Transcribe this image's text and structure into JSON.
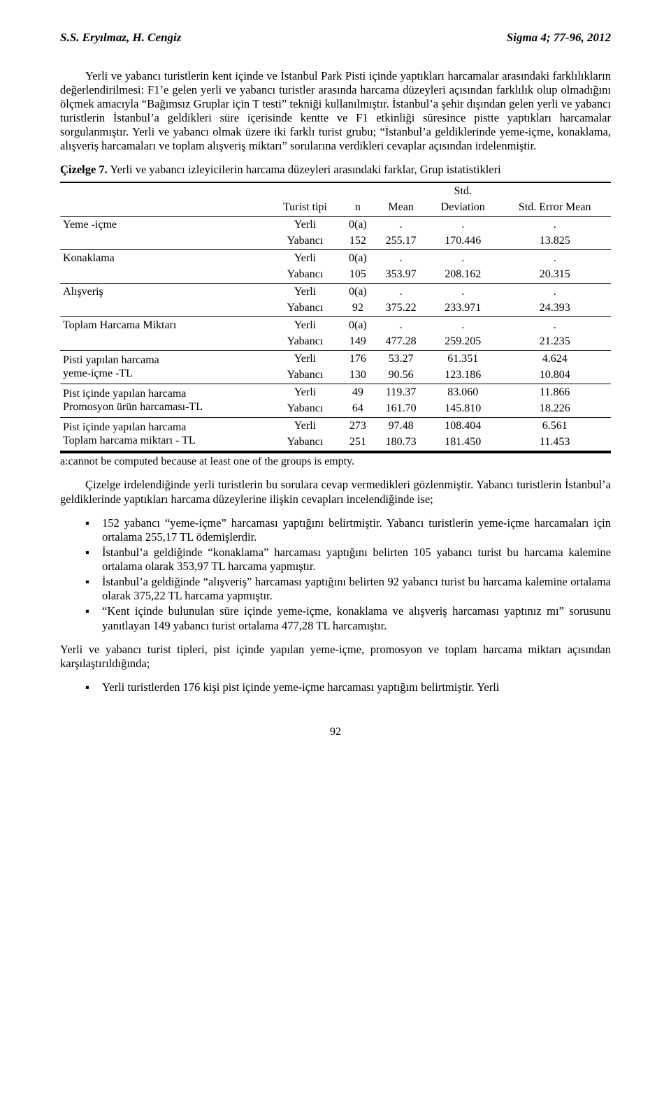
{
  "header": {
    "left": "S.S. Eryılmaz, H. Cengiz",
    "right": "Sigma 4; 77-96, 2012"
  },
  "para1": "Yerli ve yabancı turistlerin kent içinde ve İstanbul Park Pisti içinde yaptıkları harcamalar arasındaki farklılıkların değerlendirilmesi: F1’e gelen yerli ve yabancı turistler arasında harcama düzeyleri açısından farklılık olup olmadığını ölçmek amacıyla “Bağımsız Gruplar için T testi” tekniği kullanılmıştır. İstanbul’a şehir dışından gelen yerli ve yabancı turistlerin İstanbul’a geldikleri süre içerisinde kentte ve F1 etkinliği süresince pistte yaptıkları harcamalar sorgulanmıştır. Yerli ve yabancı olmak üzere iki farklı turist grubu; “İstanbul’a geldiklerinde yeme-içme, konaklama, alışveriş harcamaları ve toplam alışveriş miktarı” sorularına verdikleri cevaplar açısından irdelenmiştir.",
  "table": {
    "title_bold": "Çizelge 7.",
    "title_rest": " Yerli ve yabancı izleyicilerin harcama düzeyleri arasındaki farklar, Grup istatistikleri",
    "head": {
      "c1": "Turist tipi",
      "c2": "n",
      "c3": "Mean",
      "c4_top": "Std.",
      "c4_bot": "Deviation",
      "c5": "Std. Error Mean"
    },
    "rows": [
      {
        "label": "Yeme -içme",
        "r1": {
          "tip": "Yerli",
          "n": "0(a)",
          "mean": ".",
          "sd": ".",
          "se": "."
        },
        "r2": {
          "tip": "Yabancı",
          "n": "152",
          "mean": "255.17",
          "sd": "170.446",
          "se": "13.825"
        }
      },
      {
        "label": "Konaklama",
        "r1": {
          "tip": "Yerli",
          "n": "0(a)",
          "mean": ".",
          "sd": ".",
          "se": "."
        },
        "r2": {
          "tip": "Yabancı",
          "n": "105",
          "mean": "353.97",
          "sd": "208.162",
          "se": "20.315"
        }
      },
      {
        "label": "Alışveriş",
        "r1": {
          "tip": "Yerli",
          "n": "0(a)",
          "mean": ".",
          "sd": ".",
          "se": "."
        },
        "r2": {
          "tip": "Yabancı",
          "n": "92",
          "mean": "375.22",
          "sd": "233.971",
          "se": "24.393"
        }
      },
      {
        "label": "Toplam Harcama Miktarı",
        "r1": {
          "tip": "Yerli",
          "n": "0(a)",
          "mean": ".",
          "sd": ".",
          "se": "."
        },
        "r2": {
          "tip": "Yabancı",
          "n": "149",
          "mean": "477.28",
          "sd": "259.205",
          "se": "21.235"
        }
      },
      {
        "label": "Pisti yapılan harcama",
        "label2": "yeme-içme -TL",
        "r1": {
          "tip": "Yerli",
          "n": "176",
          "mean": "53.27",
          "sd": "61.351",
          "se": "4.624"
        },
        "r2": {
          "tip": "Yabancı",
          "n": "130",
          "mean": "90.56",
          "sd": "123.186",
          "se": "10.804"
        }
      },
      {
        "label": "Pist içinde yapılan harcama",
        "label2": "Promosyon ürün harcaması-TL",
        "r1": {
          "tip": "Yerli",
          "n": "49",
          "mean": "119.37",
          "sd": "83.060",
          "se": "11.866"
        },
        "r2": {
          "tip": "Yabancı",
          "n": "64",
          "mean": "161.70",
          "sd": "145.810",
          "se": "18.226"
        }
      },
      {
        "label": "Pist içinde yapılan harcama",
        "label2": "Toplam harcama miktarı - TL",
        "r1": {
          "tip": "Yerli",
          "n": "273",
          "mean": "97.48",
          "sd": "108.404",
          "se": "6.561"
        },
        "r2": {
          "tip": "Yabancı",
          "n": "251",
          "mean": "180.73",
          "sd": "181.450",
          "se": "11.453"
        }
      }
    ],
    "footnote": "a:cannot be computed because at least one of the groups is empty."
  },
  "para2": "Çizelge irdelendiğinde yerli turistlerin bu sorulara cevap vermedikleri gözlenmiştir. Yabancı turistlerin İstanbul’a geldiklerinde yaptıkları harcama düzeylerine ilişkin cevapları incelendiğinde ise;",
  "bullets": [
    "152 yabancı “yeme-içme” harcaması yaptığını belirtmiştir. Yabancı turistlerin yeme-içme harcamaları için ortalama 255,17 TL ödemişlerdir.",
    "İstanbul’a geldiğinde “konaklama” harcaması yaptığını belirten 105 yabancı turist bu harcama kalemine ortalama olarak 353,97 TL harcama yapmıştır.",
    "İstanbul’a geldiğinde “alışveriş” harcaması yaptığını belirten 92 yabancı turist bu harcama kalemine ortalama olarak 375,22 TL harcama yapmıştır.",
    "“Kent içinde bulunulan süre içinde yeme-içme, konaklama ve alışveriş harcaması yaptınız mı” sorusunu yanıtlayan 149 yabancı turist ortalama 477,28 TL harcamıştır."
  ],
  "para3": "Yerli ve yabancı turist tipleri, pist içinde yapılan yeme-içme, promosyon ve toplam harcama miktarı açısından karşılaştırıldığında;",
  "bullets2": [
    "Yerli turistlerden 176 kişi pist içinde yeme-içme harcaması yaptığını belirtmiştir. Yerli"
  ],
  "pageno": "92"
}
